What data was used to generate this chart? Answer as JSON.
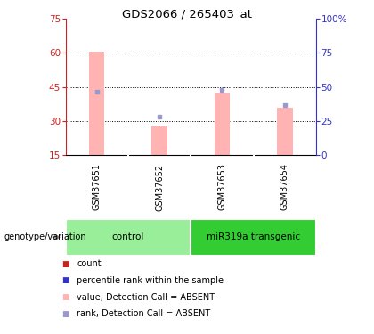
{
  "title": "GDS2066 / 265403_at",
  "samples": [
    "GSM37651",
    "GSM37652",
    "GSM37653",
    "GSM37654"
  ],
  "pink_bars": [
    60.5,
    27.5,
    42.5,
    36.0
  ],
  "blue_markers": [
    43.0,
    32.0,
    43.5,
    37.0
  ],
  "ylim_left": [
    15,
    75
  ],
  "ylim_right": [
    0,
    100
  ],
  "yticks_left": [
    15,
    30,
    45,
    60,
    75
  ],
  "yticks_right": [
    0,
    25,
    50,
    75,
    100
  ],
  "ybase": 15,
  "groups": [
    {
      "label": "control",
      "samples": [
        0,
        1
      ],
      "color": "#99ee99"
    },
    {
      "label": "miR319a transgenic",
      "samples": [
        2,
        3
      ],
      "color": "#33cc33"
    }
  ],
  "pink_color": "#ffb3b3",
  "blue_color": "#9999cc",
  "bar_width": 0.25,
  "legend_items": [
    {
      "color": "#cc2222",
      "label": "count"
    },
    {
      "color": "#3333cc",
      "label": "percentile rank within the sample"
    },
    {
      "color": "#ffb3b3",
      "label": "value, Detection Call = ABSENT"
    },
    {
      "color": "#9999cc",
      "label": "rank, Detection Call = ABSENT"
    }
  ],
  "group_label_prefix": "genotype/variation",
  "background_color": "#ffffff",
  "left_axis_color": "#cc2222",
  "right_axis_color": "#3333cc",
  "sample_bg": "#cccccc",
  "grid_yticks": [
    30,
    45,
    60
  ]
}
